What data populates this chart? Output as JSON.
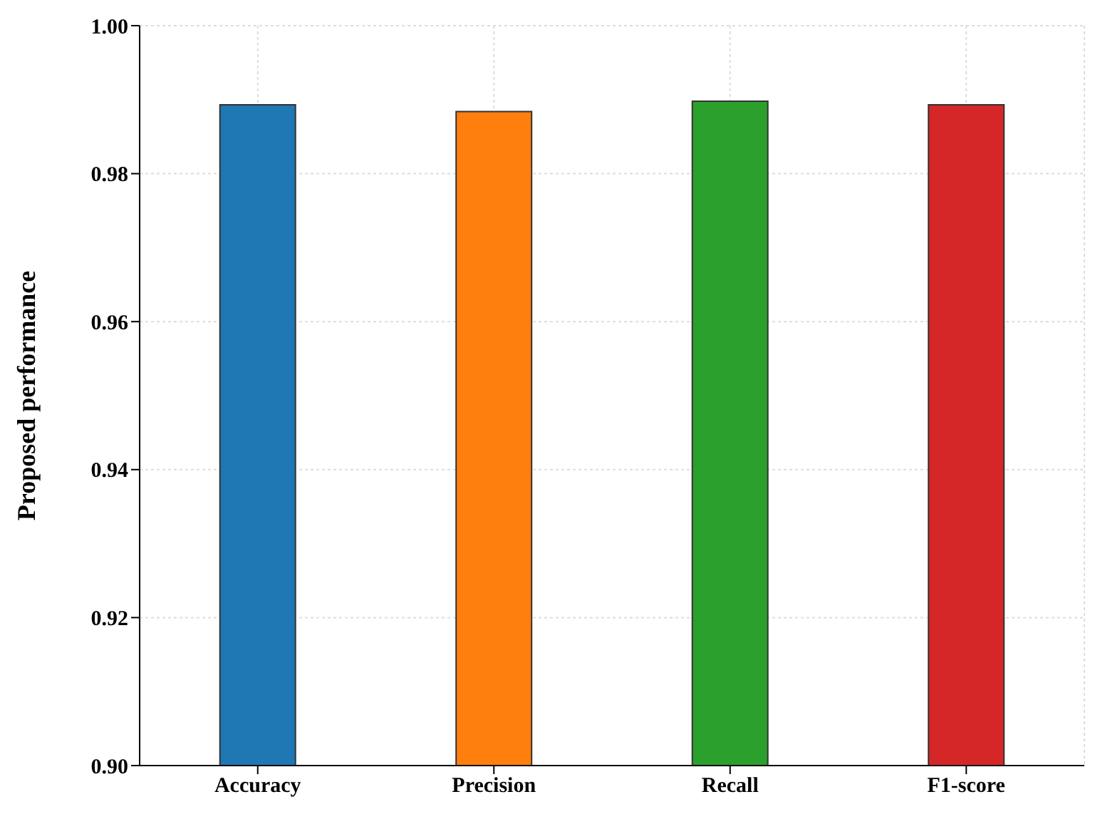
{
  "chart_data": {
    "type": "bar",
    "ylabel": "Proposed performance",
    "categories": [
      "Accuracy",
      "Precision",
      "Recall",
      "F1-score"
    ],
    "values": [
      0.9893,
      0.9884,
      0.9898,
      0.9893
    ],
    "colors": [
      "#1f77b4",
      "#ff7f0e",
      "#2ca02c",
      "#d62728"
    ],
    "ylim": [
      0.9,
      1.0
    ],
    "yticks": [
      {
        "value": 0.9,
        "label": "0.90"
      },
      {
        "value": 0.92,
        "label": "0.92"
      },
      {
        "value": 0.94,
        "label": "0.94"
      },
      {
        "value": 0.96,
        "label": "0.96"
      },
      {
        "value": 0.98,
        "label": "0.98"
      },
      {
        "value": 1.0,
        "label": "1.00"
      }
    ],
    "grid": true
  }
}
